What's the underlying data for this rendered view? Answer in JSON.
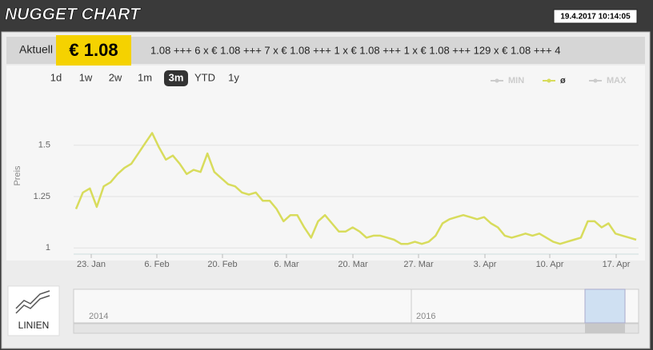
{
  "header": {
    "title": "NUGGET CHART",
    "timestamp": "19.4.2017 10:14:05"
  },
  "ticker": {
    "label": "Aktuell",
    "price": "€ 1.08",
    "text": "1.08 +++ 6 x € 1.08 +++ 7 x € 1.08 +++ 1 x € 1.08 +++ 1 x € 1.08 +++ 129 x € 1.08 +++ 4"
  },
  "range_buttons": [
    "1d",
    "1w",
    "2w",
    "1m",
    "3m",
    "YTD",
    "1y"
  ],
  "selected_range": "3m",
  "chart_data": {
    "type": "line",
    "ylabel": "Preis",
    "xtick_labels": [
      "23. Jan",
      "6. Feb",
      "20. Feb",
      "6. Mar",
      "20. Mar",
      "27. Mar",
      "3. Apr",
      "10. Apr",
      "17. Apr"
    ],
    "series": [
      {
        "name": "ø",
        "color": "#d8dc5c",
        "values": [
          1.19,
          1.27,
          1.29,
          1.2,
          1.3,
          1.32,
          1.36,
          1.39,
          1.41,
          1.46,
          1.51,
          1.56,
          1.49,
          1.43,
          1.45,
          1.41,
          1.36,
          1.38,
          1.37,
          1.46,
          1.37,
          1.34,
          1.31,
          1.3,
          1.27,
          1.26,
          1.27,
          1.23,
          1.23,
          1.19,
          1.13,
          1.16,
          1.16,
          1.1,
          1.05,
          1.13,
          1.16,
          1.12,
          1.08,
          1.08,
          1.1,
          1.08,
          1.05,
          1.06,
          1.06,
          1.05,
          1.04,
          1.02,
          1.02,
          1.03,
          1.02,
          1.03,
          1.06,
          1.12,
          1.14,
          1.15,
          1.16,
          1.15,
          1.14,
          1.15,
          1.12,
          1.1,
          1.06,
          1.05,
          1.06,
          1.07,
          1.06,
          1.07,
          1.05,
          1.03,
          1.02,
          1.03,
          1.04,
          1.05,
          1.13,
          1.13,
          1.1,
          1.12,
          1.07,
          1.06,
          1.05,
          1.04
        ]
      }
    ],
    "inactive_series": [
      "MIN",
      "MAX"
    ],
    "ylim": [
      0.97,
      1.76
    ],
    "yticks": [
      1,
      1.25,
      1.5
    ],
    "grid": true
  },
  "navigator": {
    "labels": [
      "2014",
      "2016"
    ]
  },
  "view_button": "LINIEN"
}
